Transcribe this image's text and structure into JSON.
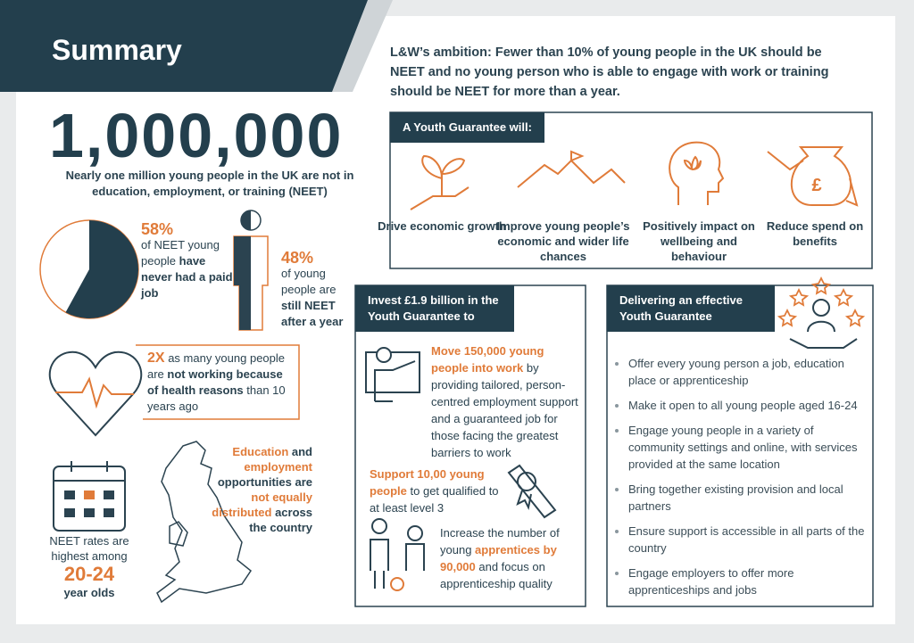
{
  "header": {
    "title": "Summary",
    "ambition": "L&W’s ambition: Fewer than 10% of young people in the UK should be NEET and no young person who is able to engage with work or training should be NEET for more than a year."
  },
  "neet_count": {
    "number": "1,000,000",
    "caption": "Nearly one million young people in the UK are not in education, employment, or training (NEET)"
  },
  "never_paid_job": {
    "percent": {
      "value": 58,
      "label": "58%"
    },
    "text": [
      "of NEET young people ",
      "have never had a paid job"
    ]
  },
  "still_neet": {
    "percent": "48%",
    "text": [
      "of young people are ",
      "still NEET after a year"
    ]
  },
  "health": {
    "text": [
      "2X",
      " as many young people are ",
      "not working because of health reasons",
      " than 10 years ago"
    ]
  },
  "age_group": {
    "text": [
      "NEET rates are highest among",
      "20-24",
      "year olds"
    ]
  },
  "regions": {
    "text": [
      "Education",
      " and ",
      "employment",
      " opportunities are ",
      "not equally distributed",
      " across the country"
    ]
  },
  "youth_guarantee": {
    "title": "A Youth Guarantee will:",
    "items": [
      "Drive economic growth",
      "Improve young people’s economic and wider life chances",
      "Positively impact on wellbeing and behaviour",
      "Reduce spend on benefits"
    ]
  },
  "invest": {
    "title": "Invest £1.9 billion in the Youth Guarantee to",
    "items": [
      [
        "Move 150,000 young people into work",
        " by providing tailored, person-centred employment support and a guaranteed job for those facing the greatest barriers to work"
      ],
      [
        "Support 10,00 young people",
        " to get qualified to at least level 3"
      ],
      [
        "Increase the number of young ",
        "apprentices by 90,000",
        " and focus on apprenticeship quality"
      ]
    ]
  },
  "delivering": {
    "title": "Delivering an effective Youth Guarantee",
    "items": [
      "Offer every young person a job, education place or apprenticeship",
      "Make it open to all young people aged 16-24",
      "Engage young people in a variety of community settings and online, with services provided at the same location",
      "Bring together existing provision and local partners",
      "Ensure support is accessible in all parts of the country",
      "Engage employers to offer more apprenticeships and jobs"
    ]
  }
}
